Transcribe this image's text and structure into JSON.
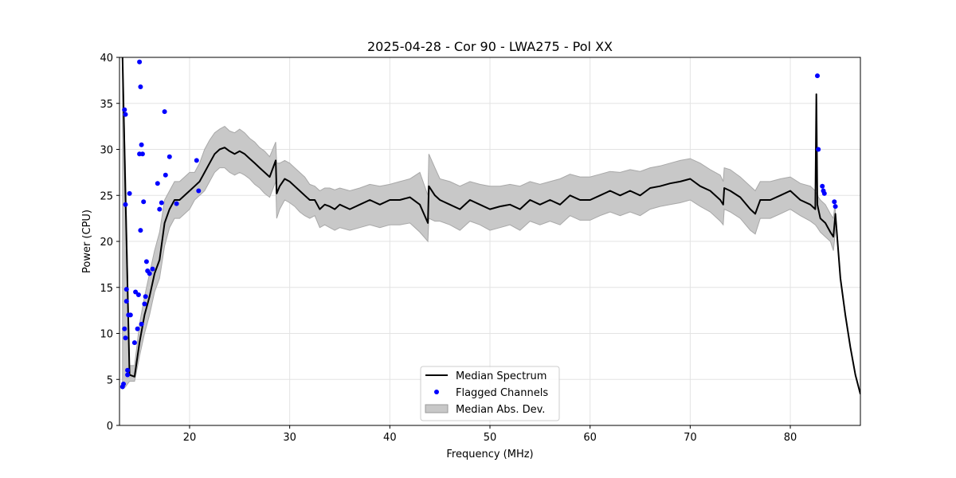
{
  "chart_data": {
    "type": "line",
    "title": "2025-04-28 - Cor 90 - LWA275 - Pol XX",
    "xlabel": "Frequency (MHz)",
    "ylabel": "Power (CPU)",
    "xlim": [
      13,
      87
    ],
    "ylim": [
      0,
      40
    ],
    "xticks": [
      20,
      30,
      40,
      50,
      60,
      70,
      80
    ],
    "yticks": [
      0,
      5,
      10,
      15,
      20,
      25,
      30,
      35,
      40
    ],
    "grid": true,
    "legend": {
      "position": "bottom-center",
      "entries": [
        "Median Spectrum",
        "Flagged Channels",
        "Median Abs. Dev."
      ]
    },
    "series": [
      {
        "name": "Median Spectrum",
        "kind": "line",
        "color": "#000000",
        "x": [
          13.3,
          13.6,
          14.0,
          14.5,
          15.0,
          15.5,
          16.0,
          16.5,
          17.0,
          17.5,
          18.0,
          18.5,
          19.0,
          19.5,
          20.0,
          20.5,
          21.0,
          21.5,
          22.0,
          22.5,
          23.0,
          23.5,
          24.0,
          24.5,
          25.0,
          25.5,
          26.0,
          26.5,
          27.0,
          27.5,
          28.0,
          28.6,
          28.7,
          29.0,
          29.5,
          30.0,
          30.5,
          31.0,
          31.5,
          32.0,
          32.5,
          33.0,
          33.5,
          34.0,
          34.5,
          35.0,
          36.0,
          37.0,
          38.0,
          39.0,
          40.0,
          41.0,
          42.0,
          43.0,
          43.8,
          43.9,
          44.5,
          45.0,
          46.0,
          47.0,
          48.0,
          49.0,
          50.0,
          51.0,
          52.0,
          53.0,
          54.0,
          55.0,
          56.0,
          57.0,
          58.0,
          59.0,
          60.0,
          61.0,
          62.0,
          63.0,
          64.0,
          65.0,
          66.0,
          67.0,
          68.0,
          69.0,
          70.0,
          71.0,
          72.0,
          73.0,
          73.3,
          73.4,
          74.0,
          75.0,
          76.0,
          76.5,
          77.0,
          78.0,
          79.0,
          80.0,
          81.0,
          82.0,
          82.5,
          82.6,
          82.7,
          82.8,
          83.0,
          83.5,
          84.0,
          84.3,
          84.5,
          85.0,
          85.5,
          86.0,
          86.5,
          87.0
        ],
        "y": [
          40,
          25,
          5.5,
          5.3,
          9.0,
          12.0,
          14.0,
          16.5,
          18.0,
          22.0,
          23.5,
          24.5,
          24.5,
          25.0,
          25.5,
          26.0,
          26.5,
          27.5,
          28.5,
          29.5,
          30.0,
          30.2,
          29.8,
          29.5,
          29.8,
          29.5,
          29.0,
          28.5,
          28.0,
          27.5,
          27.0,
          28.8,
          25.2,
          26.0,
          26.8,
          26.5,
          26.0,
          25.5,
          25.0,
          24.5,
          24.5,
          23.5,
          24.0,
          23.8,
          23.5,
          24.0,
          23.5,
          24.0,
          24.5,
          24.0,
          24.5,
          24.5,
          24.8,
          24.0,
          22.0,
          26.0,
          25.0,
          24.5,
          24.0,
          23.5,
          24.5,
          24.0,
          23.5,
          23.8,
          24.0,
          23.5,
          24.5,
          24.0,
          24.5,
          24.0,
          25.0,
          24.5,
          24.5,
          25.0,
          25.5,
          25.0,
          25.5,
          25.0,
          25.8,
          26.0,
          26.3,
          26.5,
          26.8,
          26.0,
          25.5,
          24.5,
          24.0,
          25.8,
          25.5,
          24.8,
          23.5,
          23.0,
          24.5,
          24.5,
          25.0,
          25.5,
          24.5,
          24.0,
          23.5,
          36.0,
          24.0,
          23.5,
          22.5,
          22.0,
          21.0,
          20.5,
          23.0,
          16.0,
          12.0,
          8.5,
          5.5,
          3.4
        ]
      },
      {
        "name": "Flagged Channels",
        "kind": "scatter",
        "color": "#0000ff",
        "x": [
          13.3,
          13.4,
          13.5,
          13.5,
          13.6,
          13.6,
          13.6,
          13.7,
          13.7,
          13.8,
          13.8,
          13.9,
          14.0,
          14.1,
          14.5,
          14.6,
          14.8,
          14.9,
          15.0,
          15.0,
          15.1,
          15.1,
          15.2,
          15.2,
          15.3,
          15.4,
          15.5,
          15.6,
          15.7,
          15.8,
          16.0,
          16.3,
          16.8,
          17.0,
          17.2,
          17.5,
          17.6,
          18.0,
          18.7,
          20.7,
          20.9,
          82.7,
          82.8,
          83.2,
          83.3,
          83.4,
          84.4,
          84.5
        ],
        "y": [
          4.2,
          4.5,
          10.5,
          34.3,
          33.8,
          24.0,
          9.5,
          14.8,
          13.5,
          5.5,
          6.0,
          12.0,
          25.2,
          12.0,
          9.0,
          14.5,
          10.5,
          14.2,
          29.5,
          39.5,
          36.8,
          21.2,
          30.5,
          11.0,
          29.5,
          24.3,
          13.2,
          14.0,
          17.8,
          16.8,
          16.5,
          17.0,
          26.3,
          23.5,
          24.2,
          34.1,
          27.2,
          29.2,
          24.1,
          28.8,
          25.5,
          38.0,
          30.0,
          26.0,
          25.5,
          25.2,
          24.3,
          23.8
        ]
      },
      {
        "name": "Median Abs. Dev.",
        "kind": "band",
        "color": "#c8c8c8",
        "x": [
          13.3,
          13.6,
          14.0,
          14.5,
          15.0,
          15.5,
          16.0,
          16.5,
          17.0,
          17.5,
          18.0,
          18.5,
          19.0,
          19.5,
          20.0,
          20.5,
          21.0,
          21.5,
          22.0,
          22.5,
          23.0,
          23.5,
          24.0,
          24.5,
          25.0,
          25.5,
          26.0,
          26.5,
          27.0,
          27.5,
          28.0,
          28.6,
          28.7,
          29.0,
          29.5,
          30.0,
          30.5,
          31.0,
          31.5,
          32.0,
          32.5,
          33.0,
          33.5,
          34.0,
          34.5,
          35.0,
          36.0,
          37.0,
          38.0,
          39.0,
          40.0,
          41.0,
          42.0,
          43.0,
          43.8,
          43.9,
          44.5,
          45.0,
          46.0,
          47.0,
          48.0,
          49.0,
          50.0,
          51.0,
          52.0,
          53.0,
          54.0,
          55.0,
          56.0,
          57.0,
          58.0,
          59.0,
          60.0,
          61.0,
          62.0,
          63.0,
          64.0,
          65.0,
          66.0,
          67.0,
          68.0,
          69.0,
          70.0,
          71.0,
          72.0,
          73.0,
          73.3,
          73.4,
          74.0,
          75.0,
          76.0,
          76.5,
          77.0,
          78.0,
          79.0,
          80.0,
          81.0,
          82.0,
          82.5,
          82.7,
          83.0,
          83.5,
          84.0,
          84.3,
          84.5
        ],
        "upper": [
          40,
          28,
          6.5,
          6.5,
          11.0,
          14.0,
          16.5,
          19.0,
          21.0,
          24.5,
          25.5,
          26.5,
          26.5,
          27.0,
          27.5,
          27.5,
          28.5,
          30.0,
          31.0,
          31.8,
          32.2,
          32.5,
          32.0,
          31.8,
          32.2,
          31.8,
          31.2,
          30.8,
          30.2,
          29.8,
          29.2,
          30.8,
          28.5,
          28.5,
          28.8,
          28.5,
          28.0,
          27.5,
          27.0,
          26.2,
          26.0,
          25.5,
          25.8,
          25.8,
          25.6,
          25.8,
          25.5,
          25.8,
          26.2,
          26.0,
          26.2,
          26.5,
          26.8,
          27.5,
          25.0,
          29.5,
          28.0,
          26.8,
          26.5,
          26.0,
          26.5,
          26.2,
          26.0,
          26.0,
          26.2,
          26.0,
          26.5,
          26.2,
          26.5,
          26.8,
          27.3,
          27.0,
          27.0,
          27.3,
          27.6,
          27.5,
          27.8,
          27.6,
          28.0,
          28.2,
          28.5,
          28.8,
          29.0,
          28.5,
          27.8,
          27.2,
          26.5,
          28.0,
          27.8,
          27.0,
          26.0,
          25.5,
          26.5,
          26.5,
          26.8,
          27.0,
          26.3,
          26.0,
          25.5,
          25.0,
          24.5,
          24.0,
          23.0,
          22.5,
          24.5
        ],
        "lower": [
          4.0,
          4.2,
          4.8,
          4.8,
          7.5,
          10.0,
          12.0,
          14.5,
          16.0,
          19.5,
          21.5,
          22.5,
          22.5,
          23.0,
          23.5,
          24.5,
          25.0,
          25.5,
          26.5,
          27.5,
          28.0,
          28.0,
          27.5,
          27.2,
          27.5,
          27.2,
          26.8,
          26.2,
          25.8,
          25.2,
          24.8,
          26.5,
          22.5,
          23.5,
          24.5,
          24.2,
          23.8,
          23.2,
          22.8,
          22.5,
          22.8,
          21.5,
          21.8,
          21.5,
          21.2,
          21.5,
          21.2,
          21.5,
          21.8,
          21.5,
          21.8,
          21.8,
          22.0,
          21.0,
          20.0,
          22.5,
          22.2,
          22.2,
          21.8,
          21.2,
          22.2,
          21.8,
          21.2,
          21.5,
          21.8,
          21.2,
          22.2,
          21.8,
          22.2,
          21.8,
          22.8,
          22.3,
          22.3,
          22.8,
          23.2,
          22.8,
          23.2,
          22.8,
          23.5,
          23.8,
          24.0,
          24.2,
          24.5,
          23.8,
          23.2,
          22.2,
          21.8,
          23.5,
          23.2,
          22.5,
          21.2,
          20.8,
          22.5,
          22.5,
          23.0,
          23.5,
          22.8,
          22.2,
          21.8,
          21.5,
          21.0,
          20.5,
          20.0,
          19.0,
          21.0
        ]
      }
    ]
  }
}
